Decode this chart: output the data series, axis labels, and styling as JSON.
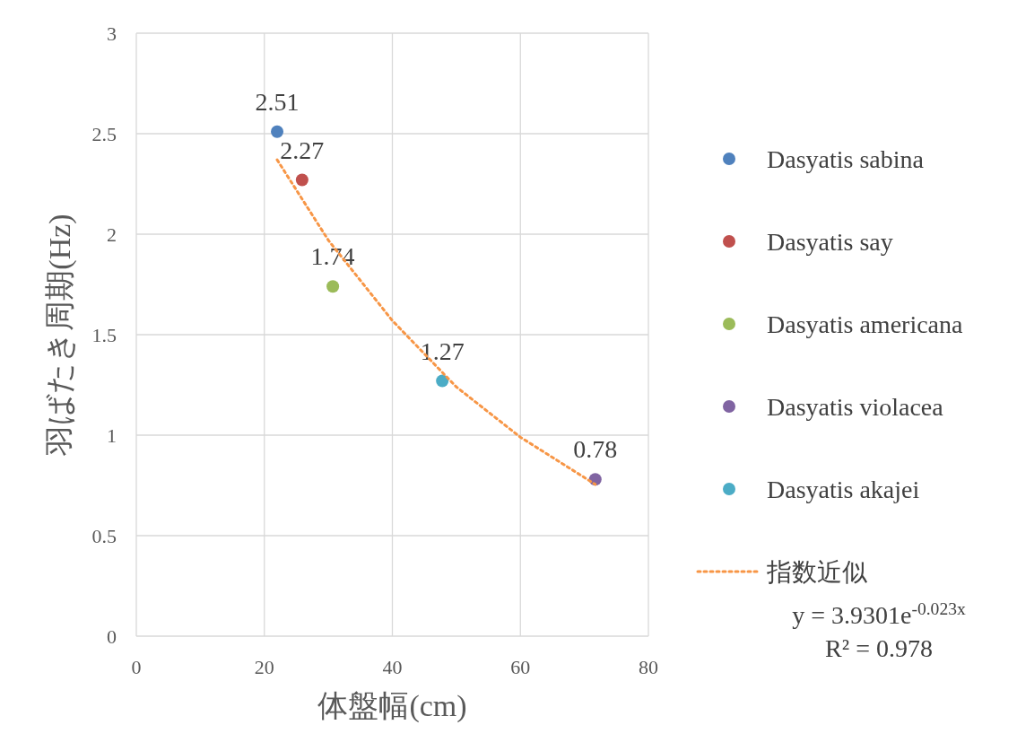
{
  "chart_data": {
    "type": "scatter",
    "xlabel": "体盤幅(cm)",
    "ylabel": "羽ばたき周期(Hz)",
    "xlim": [
      0,
      80
    ],
    "xticks": [
      0,
      20,
      40,
      60,
      80
    ],
    "ylim": [
      0,
      3
    ],
    "yticks": [
      0,
      0.5,
      1,
      1.5,
      2,
      2.5,
      3
    ],
    "grid": true,
    "legend": "right",
    "marker": "circle",
    "series": [
      {
        "name": "Dasyatis sabina",
        "color": "#4f81bd",
        "x": [
          22
        ],
        "values": [
          2.51
        ],
        "value_labels": [
          "2.51"
        ]
      },
      {
        "name": "Dasyatis say",
        "color": "#c0504d",
        "x": [
          25.9
        ],
        "values": [
          2.27
        ],
        "value_labels": [
          "2.27"
        ]
      },
      {
        "name": "Dasyatis americana",
        "color": "#9bbb59",
        "x": [
          30.7
        ],
        "values": [
          1.74
        ],
        "value_labels": [
          "1.74"
        ]
      },
      {
        "name": "Dasyatis violacea",
        "color": "#8064a2",
        "x": [
          71.7
        ],
        "values": [
          0.78
        ],
        "value_labels": [
          "0.78"
        ]
      },
      {
        "name": "Dasyatis akajei",
        "color": "#4bacc6",
        "x": [
          47.8
        ],
        "values": [
          1.27
        ],
        "value_labels": [
          "1.27"
        ]
      },
      {
        "name": "指数近似",
        "type": "line",
        "color": "#f79646",
        "line_style": "dotted",
        "marker": "none",
        "x": [
          22,
          30,
          40,
          50,
          60,
          71.7
        ],
        "values": [
          2.37,
          1.97,
          1.57,
          1.24,
          0.99,
          0.755
        ]
      }
    ],
    "annotations": [
      "y = 3.9301e$^{-0.023x}$",
      "R² = 0.978"
    ]
  }
}
